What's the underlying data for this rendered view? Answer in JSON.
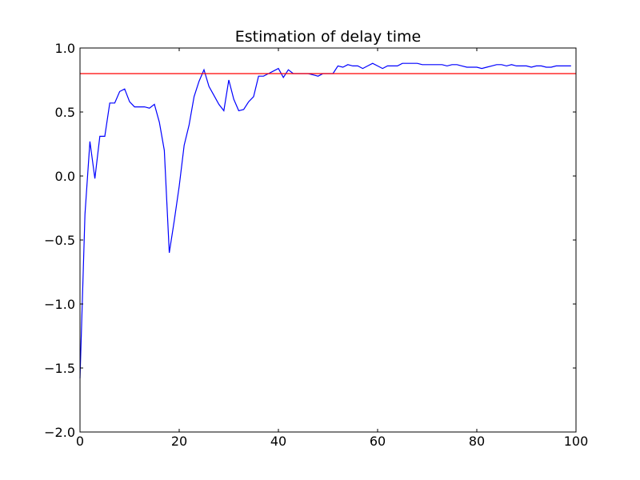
{
  "chart_data": {
    "type": "line",
    "title": "Estimation of delay time",
    "xlabel": "",
    "ylabel": "",
    "xlim": [
      0,
      100
    ],
    "ylim": [
      -2.0,
      1.0
    ],
    "x_ticks": [
      0,
      20,
      40,
      60,
      80,
      100
    ],
    "x_tick_labels": [
      "0",
      "20",
      "40",
      "60",
      "80",
      "100"
    ],
    "y_ticks": [
      -2.0,
      -1.5,
      -1.0,
      -0.5,
      0.0,
      0.5,
      1.0
    ],
    "y_tick_labels": [
      "−2.0",
      "−1.5",
      "−1.0",
      "−0.5",
      "0.0",
      "0.5",
      "1.0"
    ],
    "grid": false,
    "series": [
      {
        "color": "#0000ff",
        "x": [
          0,
          1,
          2,
          3,
          4,
          5,
          6,
          7,
          8,
          9,
          10,
          11,
          12,
          13,
          14,
          15,
          16,
          17,
          18,
          19,
          20,
          21,
          22,
          23,
          24,
          25,
          26,
          27,
          28,
          29,
          30,
          31,
          32,
          33,
          34,
          35,
          36,
          37,
          38,
          39,
          40,
          41,
          42,
          43,
          44,
          45,
          46,
          47,
          48,
          49,
          50,
          51,
          52,
          53,
          54,
          55,
          56,
          57,
          58,
          59,
          60,
          61,
          62,
          63,
          64,
          65,
          66,
          67,
          68,
          69,
          70,
          71,
          72,
          73,
          74,
          75,
          76,
          77,
          78,
          79,
          80,
          81,
          82,
          83,
          84,
          85,
          86,
          87,
          88,
          89,
          90,
          91,
          92,
          93,
          94,
          95,
          96,
          97,
          98,
          99
        ],
        "y": [
          -1.58,
          -0.3,
          0.27,
          -0.02,
          0.31,
          0.31,
          0.57,
          0.57,
          0.66,
          0.68,
          0.58,
          0.54,
          0.54,
          0.54,
          0.53,
          0.56,
          0.42,
          0.2,
          -0.6,
          -0.35,
          -0.08,
          0.24,
          0.4,
          0.62,
          0.74,
          0.83,
          0.7,
          0.63,
          0.56,
          0.51,
          0.75,
          0.6,
          0.51,
          0.52,
          0.58,
          0.62,
          0.78,
          0.78,
          0.8,
          0.82,
          0.84,
          0.77,
          0.83,
          0.8,
          0.8,
          0.8,
          0.8,
          0.79,
          0.78,
          0.8,
          0.8,
          0.8,
          0.86,
          0.85,
          0.87,
          0.86,
          0.86,
          0.84,
          0.86,
          0.88,
          0.86,
          0.84,
          0.86,
          0.86,
          0.86,
          0.88,
          0.88,
          0.88,
          0.88,
          0.87,
          0.87,
          0.87,
          0.87,
          0.87,
          0.86,
          0.87,
          0.87,
          0.86,
          0.85,
          0.85,
          0.85,
          0.84,
          0.85,
          0.86,
          0.87,
          0.87,
          0.86,
          0.87,
          0.86,
          0.86,
          0.86,
          0.85,
          0.86,
          0.86,
          0.85,
          0.85,
          0.86,
          0.86,
          0.86,
          0.86
        ]
      },
      {
        "color": "#ff0000",
        "x": [
          0,
          100
        ],
        "y": [
          0.8,
          0.8
        ]
      }
    ]
  }
}
